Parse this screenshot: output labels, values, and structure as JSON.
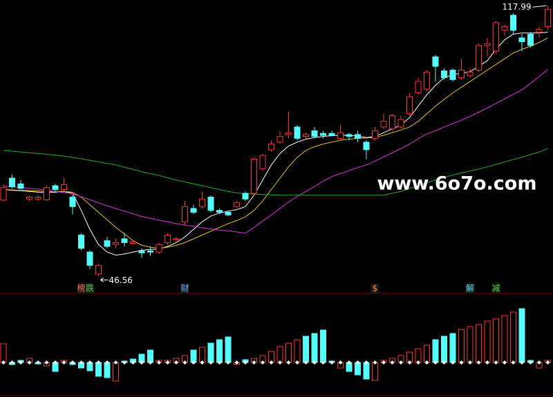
{
  "watermark": "www.6o7o.com",
  "chart_data": [
    {
      "type": "candlestick",
      "ylim": [
        43,
        119.5
      ],
      "open": [
        66.7,
        72.5,
        71,
        67,
        67,
        66.8,
        70.5,
        69.5,
        67.5,
        57.5,
        53,
        47.2,
        56,
        55,
        56.5,
        55.3,
        53.3,
        53.3,
        53,
        55.5,
        56.3,
        61,
        64.5,
        65,
        67.5,
        64,
        63.5,
        65,
        68.5,
        68.5,
        75,
        80,
        82,
        84,
        86,
        83.5,
        85,
        84.3,
        84.3,
        83,
        84,
        84,
        82,
        83,
        86,
        85.5,
        86,
        89.5,
        95,
        96,
        104.5,
        100.8,
        101,
        99,
        99.5,
        101,
        107.5,
        106,
        111.5,
        115.5,
        109.5,
        110.5,
        111,
        112.5
      ],
      "high": [
        70.8,
        73.5,
        72,
        68,
        68,
        70.5,
        71,
        72.5,
        68,
        58,
        53.5,
        50,
        57,
        56.5,
        58,
        56,
        54,
        54.5,
        55.5,
        58,
        57,
        66.5,
        65.5,
        69,
        68,
        64.5,
        64,
        66.5,
        69,
        78,
        79,
        82.5,
        85,
        90,
        86.5,
        84.5,
        86,
        85,
        85,
        86.5,
        84.5,
        85,
        82.5,
        86,
        89.5,
        89.5,
        89,
        95,
        99,
        101,
        105,
        101.5,
        101.5,
        104,
        101.5,
        108,
        109.5,
        114,
        113,
        116,
        110.5,
        111,
        112.5,
        117.99
      ],
      "low": [
        66.4,
        69.8,
        69.5,
        66.5,
        66.5,
        66.5,
        69,
        69,
        63,
        53.5,
        48.5,
        46.56,
        54,
        54,
        54.5,
        55,
        51.5,
        52,
        52.5,
        55,
        55.5,
        60,
        63,
        64.5,
        63.5,
        63,
        62.5,
        64.8,
        66.5,
        68,
        74.5,
        79.5,
        81.5,
        83,
        82.5,
        83,
        83,
        83,
        83.5,
        82.5,
        82.5,
        82,
        77.5,
        82.5,
        85.5,
        85,
        85.5,
        89,
        94.5,
        95.5,
        98,
        98.5,
        98,
        98.5,
        99,
        100.5,
        104.5,
        105.5,
        110,
        110.5,
        106,
        107,
        109.5,
        111.5
      ],
      "close": [
        70,
        70.2,
        69.8,
        67.5,
        67.5,
        70,
        69.5,
        70.8,
        65,
        54,
        49.5,
        49.5,
        54.5,
        55.5,
        55.5,
        55.7,
        52.8,
        53,
        55,
        57.5,
        56.5,
        65,
        63.5,
        67,
        64,
        63.5,
        62.8,
        66,
        67,
        77.5,
        78.5,
        81.5,
        83.5,
        84.5,
        83,
        84,
        83.5,
        83.8,
        83.8,
        84.5,
        83.5,
        83,
        80,
        85,
        87.5,
        89,
        88,
        94,
        98,
        100.5,
        102,
        99,
        98.5,
        101,
        100.5,
        107.5,
        108,
        113.5,
        112.5,
        111.5,
        108.5,
        107.5,
        111.8,
        117
      ],
      "up_color": "#ff3232",
      "down_color": "#54fcfc",
      "series": [
        {
          "color": "#ffffff",
          "values": [
            69.5,
            69.3,
            69.2,
            69,
            68.8,
            68.7,
            68.8,
            69,
            68.5,
            64,
            59,
            55,
            53,
            52.2,
            52.5,
            53,
            53.5,
            53.7,
            53.8,
            54.5,
            55.5,
            57,
            59,
            61,
            62.5,
            63.3,
            63.8,
            64.2,
            65,
            68,
            72,
            76,
            79,
            81,
            82,
            82.8,
            83.2,
            83.5,
            83.7,
            83.8,
            83.8,
            83.6,
            83.2,
            83.5,
            84.5,
            85.5,
            86.5,
            88.5,
            91.5,
            94.5,
            97,
            99,
            99.8,
            100.2,
            100.6,
            102,
            103.5,
            106.5,
            109,
            110.5,
            110.8,
            110.8,
            110.8,
            111
          ]
        },
        {
          "color": "#e8c020",
          "values": [
            69.5,
            69.4,
            69.3,
            69.2,
            69.1,
            69,
            69,
            69,
            68.8,
            67.5,
            65.5,
            63.5,
            61.5,
            59.5,
            57.8,
            56,
            54.8,
            54.3,
            54,
            54.3,
            54.8,
            55.5,
            56.5,
            57.5,
            58.5,
            59.5,
            60.5,
            61.3,
            62.3,
            64,
            66.5,
            69.5,
            72.5,
            75.5,
            78,
            79.8,
            80.8,
            81.5,
            82,
            82.5,
            82.8,
            83,
            83.1,
            83.3,
            83.8,
            84.5,
            85.2,
            86,
            87.5,
            89.5,
            91.5,
            93.3,
            95,
            96.5,
            98,
            99.5,
            101,
            102.5,
            104,
            105.5,
            106.5,
            107.3,
            108.3,
            109.5
          ]
        },
        {
          "color": "#e030e0",
          "values": [
            70.4,
            70.2,
            70,
            69.8,
            69.6,
            69.3,
            69,
            68.7,
            68.4,
            67.6,
            66.8,
            66,
            65.2,
            64.5,
            63.8,
            63.1,
            62.4,
            61.9,
            61.4,
            61,
            60.5,
            60.1,
            59.8,
            59.4,
            59.1,
            58.8,
            58.6,
            58.3,
            58,
            59.5,
            61.2,
            62.8,
            64.5,
            66.2,
            67.7,
            69,
            70.3,
            71.7,
            72.9,
            73.7,
            74.5,
            75.3,
            76,
            77,
            78.1,
            79.2,
            80.3,
            81.5,
            82.9,
            84.2,
            85,
            86,
            86.9,
            87.8,
            88.8,
            89.9,
            91,
            92.2,
            93.4,
            94.6,
            95.8,
            97.5,
            99.3,
            101.2
          ]
        },
        {
          "color": "#20b020",
          "values": [
            79.8,
            79.6,
            79.4,
            79.2,
            79,
            78.8,
            78.6,
            78.3,
            78,
            77.6,
            77.2,
            76.8,
            76.4,
            76,
            75.4,
            74.8,
            74.2,
            73.7,
            73.2,
            72.6,
            72,
            71.5,
            71,
            70.5,
            70,
            69.5,
            69,
            68.6,
            68.4,
            68.3,
            68.2,
            68.1,
            68,
            68,
            68,
            68,
            68,
            68,
            68,
            68,
            68,
            68,
            68,
            68,
            68,
            68.5,
            69,
            69.8,
            70.5,
            71.3,
            72,
            72.7,
            73.3,
            73.9,
            74.4,
            74.9,
            75.5,
            76.1,
            76.8,
            77.4,
            78,
            78.7,
            79.4,
            80.3
          ]
        }
      ],
      "events": [
        null,
        null,
        null,
        null,
        null,
        null,
        null,
        null,
        null,
        {
          "label": "榜",
          "color": "#ff6a3c"
        },
        {
          "label": "跌",
          "color": "#40d040"
        },
        null,
        null,
        null,
        null,
        null,
        null,
        null,
        null,
        null,
        null,
        {
          "label": "财",
          "color": "#60b0ff"
        },
        null,
        null,
        null,
        null,
        null,
        null,
        null,
        null,
        null,
        null,
        null,
        null,
        null,
        null,
        null,
        null,
        null,
        null,
        null,
        null,
        null,
        {
          "label": "$",
          "color": "#ff8c20"
        },
        null,
        null,
        null,
        null,
        null,
        null,
        null,
        null,
        null,
        null,
        {
          "label": "解",
          "color": "#40e0e0"
        },
        null,
        null,
        {
          "label": "减",
          "color": "#40d040"
        },
        null,
        null,
        null,
        null,
        null,
        null
      ]
    },
    {
      "type": "bar",
      "ylim": [
        -48,
        80
      ],
      "values": [
        27,
        -3,
        3,
        6,
        -2,
        -5,
        -13,
        3,
        -3,
        -8,
        -12,
        -20,
        -22,
        -27,
        2,
        5,
        12,
        18,
        3,
        3,
        6,
        10,
        18,
        22,
        28,
        33,
        37,
        -3,
        4,
        6,
        10,
        16,
        23,
        28,
        33,
        38,
        42,
        47,
        2,
        -8,
        -13,
        -18,
        -24,
        -26,
        3,
        6,
        10,
        15,
        20,
        25,
        33,
        38,
        42,
        48,
        52,
        55,
        60,
        63,
        68,
        73,
        78,
        3,
        -8,
        3
      ],
      "colors": [
        "#ff3232",
        "#54fcfc",
        "#54fcfc",
        "#ff3232",
        "#54fcfc",
        "#ff3232",
        "#54fcfc",
        "#ff3232",
        "#54fcfc",
        "#54fcfc",
        "#54fcfc",
        "#54fcfc",
        "#54fcfc",
        "#ff3232",
        "#54fcfc",
        "#54fcfc",
        "#54fcfc",
        "#54fcfc",
        "#ff3232",
        "#ff3232",
        "#ff3232",
        "#ff3232",
        "#54fcfc",
        "#ff3232",
        "#54fcfc",
        "#54fcfc",
        "#54fcfc",
        "#ff3232",
        "#54fcfc",
        "#ff3232",
        "#ff3232",
        "#ff3232",
        "#ff3232",
        "#ff3232",
        "#ff3232",
        "#54fcfc",
        "#54fcfc",
        "#54fcfc",
        "#54fcfc",
        "#ff3232",
        "#54fcfc",
        "#54fcfc",
        "#54fcfc",
        "#ff3232",
        "#ff3232",
        "#ff3232",
        "#ff3232",
        "#ff3232",
        "#ff3232",
        "#ff3232",
        "#54fcfc",
        "#54fcfc",
        "#54fcfc",
        "#ff3232",
        "#ff3232",
        "#ff3232",
        "#ff3232",
        "#ff3232",
        "#ff3232",
        "#ff3232",
        "#54fcfc",
        "#54fcfc",
        "#ff3232",
        "#ff3232"
      ]
    }
  ]
}
